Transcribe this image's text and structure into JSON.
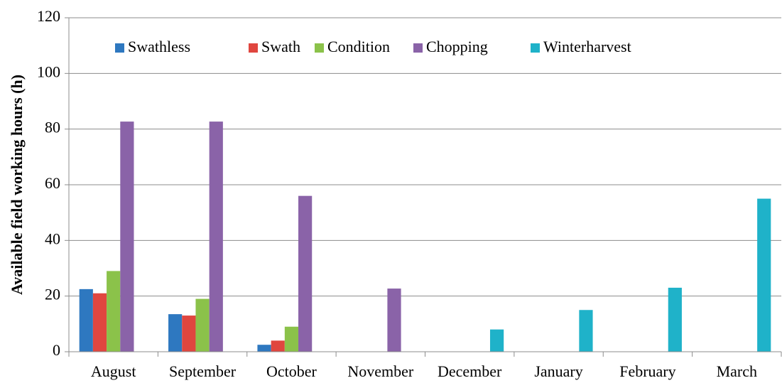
{
  "chart_data": {
    "type": "bar",
    "ylabel": "Available field working hours (h)",
    "categories": [
      "August",
      "September",
      "October",
      "November",
      "December",
      "January",
      "February",
      "March"
    ],
    "series": [
      {
        "name": "Swathless",
        "color": "#2e78c0",
        "values": [
          22.5,
          13.5,
          2.5,
          0,
          0,
          0,
          0,
          0
        ]
      },
      {
        "name": "Swath",
        "color": "#e0463f",
        "values": [
          21,
          13,
          4,
          0,
          0,
          0,
          0,
          0
        ]
      },
      {
        "name": "Condition",
        "color": "#8bc24a",
        "values": [
          29,
          19,
          9,
          0,
          0,
          0,
          0,
          0
        ]
      },
      {
        "name": "Chopping",
        "color": "#8a63a8",
        "values": [
          82.7,
          82.7,
          56,
          22.7,
          0,
          0,
          0,
          0
        ]
      },
      {
        "name": "Winterharvest",
        "color": "#1fb2c9",
        "values": [
          0,
          0,
          0,
          0,
          8,
          15,
          23,
          55
        ]
      }
    ],
    "ylim": [
      0,
      120
    ],
    "yticks": [
      0,
      20,
      40,
      60,
      80,
      100,
      120
    ],
    "grid": true
  }
}
